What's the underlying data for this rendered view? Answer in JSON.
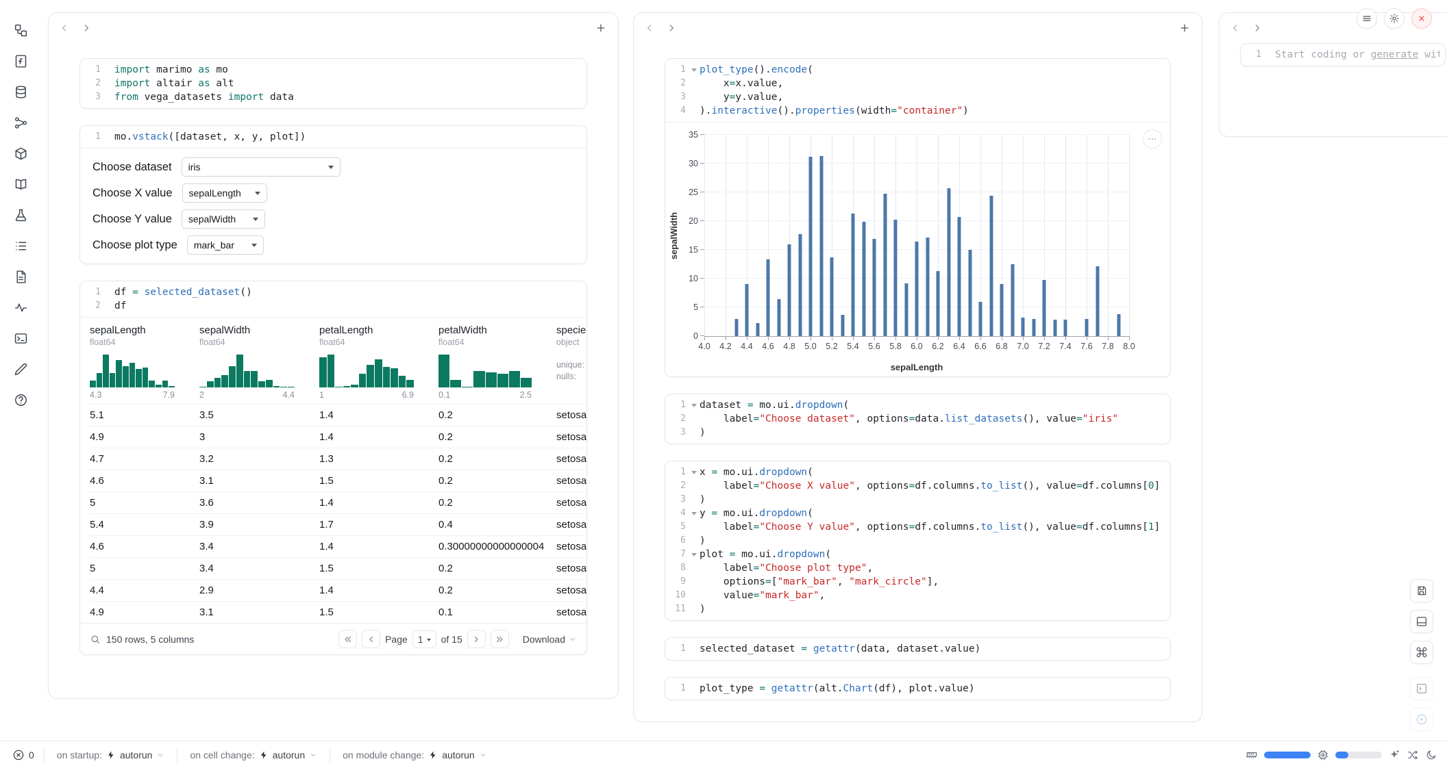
{
  "window": {
    "controls": [
      "notebook-menu",
      "settings",
      "shutdown"
    ]
  },
  "sidebar": {
    "items": [
      {
        "name": "outline",
        "icon": "workflow"
      },
      {
        "name": "files",
        "icon": "fileFunction"
      },
      {
        "name": "data-sources",
        "icon": "database"
      },
      {
        "name": "dependencies",
        "icon": "gitGraph"
      },
      {
        "name": "packages",
        "icon": "box"
      },
      {
        "name": "documentation",
        "icon": "book"
      },
      {
        "name": "experiments",
        "icon": "flask"
      },
      {
        "name": "logs",
        "icon": "list"
      },
      {
        "name": "snippets",
        "icon": "fileText"
      },
      {
        "name": "tracing",
        "icon": "activity"
      },
      {
        "name": "terminal",
        "icon": "terminal"
      },
      {
        "name": "scratchpad",
        "icon": "pen"
      },
      {
        "name": "help",
        "icon": "help"
      }
    ]
  },
  "columns": {
    "col1": {
      "imports": {
        "lines": [
          {
            "n": "1",
            "t": [
              [
                "k",
                "import"
              ],
              [
                "p",
                " marimo "
              ],
              [
                "k",
                "as"
              ],
              [
                "p",
                " mo"
              ]
            ]
          },
          {
            "n": "2",
            "t": [
              [
                "k",
                "import"
              ],
              [
                "p",
                " altair "
              ],
              [
                "k",
                "as"
              ],
              [
                "p",
                " alt"
              ]
            ]
          },
          {
            "n": "3",
            "t": [
              [
                "k",
                "from"
              ],
              [
                "p",
                " vega_datasets "
              ],
              [
                "k",
                "import"
              ],
              [
                "p",
                " data"
              ]
            ]
          }
        ]
      },
      "vstack": {
        "lines": [
          {
            "n": "1",
            "t": [
              [
                "p",
                "mo."
              ],
              [
                "f",
                "vstack"
              ],
              [
                "p",
                "([dataset, x, y, plot])"
              ]
            ]
          }
        ]
      },
      "controls": [
        {
          "label": "Choose dataset",
          "value": "iris"
        },
        {
          "label": "Choose X value",
          "value": "sepalLength"
        },
        {
          "label": "Choose Y value",
          "value": "sepalWidth"
        },
        {
          "label": "Choose plot type",
          "value": "mark_bar"
        }
      ],
      "df": {
        "lines": [
          {
            "n": "1",
            "t": [
              [
                "p",
                "df "
              ],
              [
                "k",
                "="
              ],
              [
                "p",
                " "
              ],
              [
                "f",
                "selected_dataset"
              ],
              [
                "p",
                "()"
              ]
            ]
          },
          {
            "n": "2",
            "t": [
              [
                "p",
                "df"
              ]
            ]
          }
        ]
      },
      "table": {
        "columns": [
          {
            "name": "sepalLength",
            "dtype": "float64",
            "min": "4.3",
            "max": "7.9",
            "hist": [
              0.2,
              0.44,
              1,
              0.44,
              0.84,
              0.64,
              0.76,
              0.56,
              0.6,
              0.2,
              0.08,
              0.2,
              0.04
            ]
          },
          {
            "name": "sepalWidth",
            "dtype": "float64",
            "min": "2",
            "max": "4.4",
            "hist": [
              0.03,
              0.19,
              0.3,
              0.38,
              0.65,
              1,
              0.51,
              0.49,
              0.19,
              0.22,
              0.05,
              0.03,
              0.03
            ]
          },
          {
            "name": "petalLength",
            "dtype": "float64",
            "min": "1",
            "max": "6.9",
            "hist": [
              0.92,
              1,
              0,
              0.04,
              0.08,
              0.42,
              0.69,
              0.85,
              0.62,
              0.58,
              0.35,
              0.23
            ]
          },
          {
            "name": "petalWidth",
            "dtype": "float64",
            "min": "0.1",
            "max": "2.5",
            "hist": [
              1,
              0.22,
              0.02,
              0.5,
              0.45,
              0.42,
              0.5,
              0.3
            ]
          },
          {
            "name": "species",
            "dtype": "object",
            "stats": [
              "unique:",
              "nulls:"
            ]
          }
        ],
        "rows": [
          [
            "5.1",
            "3.5",
            "1.4",
            "0.2",
            "setosa"
          ],
          [
            "4.9",
            "3",
            "1.4",
            "0.2",
            "setosa"
          ],
          [
            "4.7",
            "3.2",
            "1.3",
            "0.2",
            "setosa"
          ],
          [
            "4.6",
            "3.1",
            "1.5",
            "0.2",
            "setosa"
          ],
          [
            "5",
            "3.6",
            "1.4",
            "0.2",
            "setosa"
          ],
          [
            "5.4",
            "3.9",
            "1.7",
            "0.4",
            "setosa"
          ],
          [
            "4.6",
            "3.4",
            "1.4",
            "0.30000000000000004",
            "setosa"
          ],
          [
            "5",
            "3.4",
            "1.5",
            "0.2",
            "setosa"
          ],
          [
            "4.4",
            "2.9",
            "1.4",
            "0.2",
            "setosa"
          ],
          [
            "4.9",
            "3.1",
            "1.5",
            "0.1",
            "setosa"
          ]
        ],
        "footer": {
          "summary": "150 rows, 5 columns",
          "page_label": "Page",
          "page_value": "1",
          "of_label": "of 15",
          "download_label": "Download"
        }
      }
    },
    "col2": {
      "plot": {
        "lines": [
          {
            "n": "1",
            "f": true,
            "t": [
              [
                "f",
                "plot_type"
              ],
              [
                "p",
                "()."
              ],
              [
                "f",
                "encode"
              ],
              [
                "p",
                "("
              ]
            ]
          },
          {
            "n": "2",
            "t": [
              [
                "p",
                "    x"
              ],
              [
                "k",
                "="
              ],
              [
                "p",
                "x.value,"
              ]
            ]
          },
          {
            "n": "3",
            "t": [
              [
                "p",
                "    y"
              ],
              [
                "k",
                "="
              ],
              [
                "p",
                "y.value,"
              ]
            ]
          },
          {
            "n": "4",
            "t": [
              [
                "p",
                ")."
              ],
              [
                "f",
                "interactive"
              ],
              [
                "p",
                "()."
              ],
              [
                "f",
                "properties"
              ],
              [
                "p",
                "(width"
              ],
              [
                "k",
                "="
              ],
              [
                "s",
                "\"container\""
              ],
              [
                "p",
                ")"
              ]
            ]
          }
        ]
      },
      "dataset": {
        "lines": [
          {
            "n": "1",
            "f": true,
            "t": [
              [
                "p",
                "dataset "
              ],
              [
                "k",
                "="
              ],
              [
                "p",
                " mo.ui."
              ],
              [
                "f",
                "dropdown"
              ],
              [
                "p",
                "("
              ]
            ]
          },
          {
            "n": "2",
            "t": [
              [
                "p",
                "    label"
              ],
              [
                "k",
                "="
              ],
              [
                "s",
                "\"Choose dataset\""
              ],
              [
                "p",
                ", options"
              ],
              [
                "k",
                "="
              ],
              [
                "p",
                "data."
              ],
              [
                "f",
                "list_datasets"
              ],
              [
                "p",
                "(), value"
              ],
              [
                "k",
                "="
              ],
              [
                "s",
                "\"iris\""
              ]
            ]
          },
          {
            "n": "3",
            "t": [
              [
                "p",
                ")"
              ]
            ]
          }
        ]
      },
      "dropdowns": {
        "lines": [
          {
            "n": "1",
            "f": true,
            "t": [
              [
                "p",
                "x "
              ],
              [
                "k",
                "="
              ],
              [
                "p",
                " mo.ui."
              ],
              [
                "f",
                "dropdown"
              ],
              [
                "p",
                "("
              ]
            ]
          },
          {
            "n": "2",
            "t": [
              [
                "p",
                "    label"
              ],
              [
                "k",
                "="
              ],
              [
                "s",
                "\"Choose X value\""
              ],
              [
                "p",
                ", options"
              ],
              [
                "k",
                "="
              ],
              [
                "p",
                "df.columns."
              ],
              [
                "f",
                "to_list"
              ],
              [
                "p",
                "(), value"
              ],
              [
                "k",
                "="
              ],
              [
                "p",
                "df.columns["
              ],
              [
                "n",
                "0"
              ],
              [
                "p",
                "]"
              ]
            ]
          },
          {
            "n": "3",
            "t": [
              [
                "p",
                ")"
              ]
            ]
          },
          {
            "n": "4",
            "f": true,
            "t": [
              [
                "p",
                "y "
              ],
              [
                "k",
                "="
              ],
              [
                "p",
                " mo.ui."
              ],
              [
                "f",
                "dropdown"
              ],
              [
                "p",
                "("
              ]
            ]
          },
          {
            "n": "5",
            "t": [
              [
                "p",
                "    label"
              ],
              [
                "k",
                "="
              ],
              [
                "s",
                "\"Choose Y value\""
              ],
              [
                "p",
                ", options"
              ],
              [
                "k",
                "="
              ],
              [
                "p",
                "df.columns."
              ],
              [
                "f",
                "to_list"
              ],
              [
                "p",
                "(), value"
              ],
              [
                "k",
                "="
              ],
              [
                "p",
                "df.columns["
              ],
              [
                "n",
                "1"
              ],
              [
                "p",
                "]"
              ]
            ]
          },
          {
            "n": "6",
            "t": [
              [
                "p",
                ")"
              ]
            ]
          },
          {
            "n": "7",
            "f": true,
            "t": [
              [
                "p",
                "plot "
              ],
              [
                "k",
                "="
              ],
              [
                "p",
                " mo.ui."
              ],
              [
                "f",
                "dropdown"
              ],
              [
                "p",
                "("
              ]
            ]
          },
          {
            "n": "8",
            "t": [
              [
                "p",
                "    label"
              ],
              [
                "k",
                "="
              ],
              [
                "s",
                "\"Choose plot type\""
              ],
              [
                "p",
                ","
              ]
            ]
          },
          {
            "n": "9",
            "t": [
              [
                "p",
                "    options"
              ],
              [
                "k",
                "="
              ],
              [
                "p",
                "["
              ],
              [
                "s",
                "\"mark_bar\""
              ],
              [
                "p",
                ", "
              ],
              [
                "s",
                "\"mark_circle\""
              ],
              [
                "p",
                "],"
              ]
            ]
          },
          {
            "n": "10",
            "t": [
              [
                "p",
                "    value"
              ],
              [
                "k",
                "="
              ],
              [
                "s",
                "\"mark_bar\""
              ],
              [
                "p",
                ","
              ]
            ]
          },
          {
            "n": "11",
            "t": [
              [
                "p",
                ")"
              ]
            ]
          }
        ]
      },
      "selected_dataset": {
        "lines": [
          {
            "n": "1",
            "t": [
              [
                "p",
                "selected_dataset "
              ],
              [
                "k",
                "="
              ],
              [
                "p",
                " "
              ],
              [
                "f",
                "getattr"
              ],
              [
                "p",
                "(data, dataset.value)"
              ]
            ]
          }
        ]
      },
      "plot_type": {
        "lines": [
          {
            "n": "1",
            "t": [
              [
                "p",
                "plot_type "
              ],
              [
                "k",
                "="
              ],
              [
                "p",
                " "
              ],
              [
                "f",
                "getattr"
              ],
              [
                "p",
                "(alt."
              ],
              [
                "f",
                "Chart"
              ],
              [
                "p",
                "(df), plot.value)"
              ]
            ]
          }
        ]
      }
    },
    "col3": {
      "new_cell": {
        "line_number": "1",
        "prefix": "Start coding or ",
        "link": "generate",
        "suffix": " with AI."
      }
    }
  },
  "chart_data": {
    "type": "bar",
    "title": "",
    "xlabel": "sepalLength",
    "ylabel": "sepalWidth",
    "xlim": [
      4.0,
      8.0
    ],
    "ylim": [
      0,
      35
    ],
    "xticks": [
      4.0,
      4.2,
      4.4,
      4.6,
      4.8,
      5.0,
      5.2,
      5.4,
      5.6,
      5.8,
      6.0,
      6.2,
      6.4,
      6.6,
      6.8,
      7.0,
      7.2,
      7.4,
      7.6,
      7.8,
      8.0
    ],
    "yticks": [
      0,
      5,
      10,
      15,
      20,
      25,
      30,
      35
    ],
    "aggregate": "sum of sepalWidth stacked per sepalLength",
    "x": [
      4.3,
      4.4,
      4.5,
      4.6,
      4.7,
      4.8,
      4.9,
      5.0,
      5.1,
      5.2,
      5.3,
      5.4,
      5.5,
      5.6,
      5.7,
      5.8,
      5.9,
      6.0,
      6.1,
      6.2,
      6.3,
      6.4,
      6.5,
      6.6,
      6.7,
      6.8,
      6.9,
      7.0,
      7.1,
      7.2,
      7.3,
      7.4,
      7.6,
      7.7,
      7.9
    ],
    "values": [
      3.0,
      9.1,
      2.3,
      13.3,
      6.4,
      15.9,
      17.7,
      31.2,
      31.3,
      13.7,
      3.7,
      21.3,
      19.9,
      16.9,
      24.8,
      20.2,
      9.2,
      16.4,
      17.1,
      11.3,
      25.7,
      20.7,
      15.0,
      5.9,
      24.4,
      9.0,
      12.5,
      3.2,
      3.0,
      9.8,
      2.9,
      2.8,
      3.0,
      12.2,
      3.8
    ],
    "bar_color": "#4c78a8",
    "grid": true,
    "legend": "none"
  },
  "statusbar": {
    "error_count": "0",
    "runtime": [
      {
        "label": "on startup:",
        "value": "autorun"
      },
      {
        "label": "on cell change:",
        "value": "autorun"
      },
      {
        "label": "on module change:",
        "value": "autorun"
      }
    ]
  }
}
